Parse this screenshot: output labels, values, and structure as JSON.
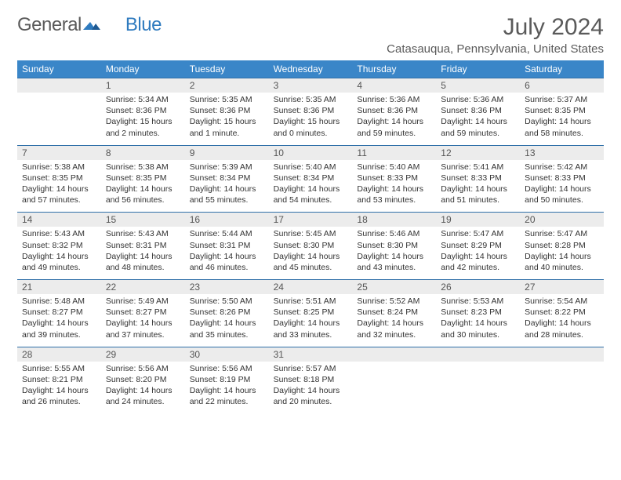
{
  "logo": {
    "part1": "General",
    "part2": "Blue"
  },
  "title": "July 2024",
  "location": "Catasauqua, Pennsylvania, United States",
  "colors": {
    "header_bg": "#3a86c8",
    "header_text": "#ffffff",
    "daynum_bg": "#ececec",
    "week_border": "#2f6fa8",
    "body_text": "#333333",
    "title_text": "#5a5a5a"
  },
  "day_names": [
    "Sunday",
    "Monday",
    "Tuesday",
    "Wednesday",
    "Thursday",
    "Friday",
    "Saturday"
  ],
  "weeks": [
    [
      {
        "n": "",
        "sunrise": "",
        "sunset": "",
        "daylight": ""
      },
      {
        "n": "1",
        "sunrise": "Sunrise: 5:34 AM",
        "sunset": "Sunset: 8:36 PM",
        "daylight": "Daylight: 15 hours and 2 minutes."
      },
      {
        "n": "2",
        "sunrise": "Sunrise: 5:35 AM",
        "sunset": "Sunset: 8:36 PM",
        "daylight": "Daylight: 15 hours and 1 minute."
      },
      {
        "n": "3",
        "sunrise": "Sunrise: 5:35 AM",
        "sunset": "Sunset: 8:36 PM",
        "daylight": "Daylight: 15 hours and 0 minutes."
      },
      {
        "n": "4",
        "sunrise": "Sunrise: 5:36 AM",
        "sunset": "Sunset: 8:36 PM",
        "daylight": "Daylight: 14 hours and 59 minutes."
      },
      {
        "n": "5",
        "sunrise": "Sunrise: 5:36 AM",
        "sunset": "Sunset: 8:36 PM",
        "daylight": "Daylight: 14 hours and 59 minutes."
      },
      {
        "n": "6",
        "sunrise": "Sunrise: 5:37 AM",
        "sunset": "Sunset: 8:35 PM",
        "daylight": "Daylight: 14 hours and 58 minutes."
      }
    ],
    [
      {
        "n": "7",
        "sunrise": "Sunrise: 5:38 AM",
        "sunset": "Sunset: 8:35 PM",
        "daylight": "Daylight: 14 hours and 57 minutes."
      },
      {
        "n": "8",
        "sunrise": "Sunrise: 5:38 AM",
        "sunset": "Sunset: 8:35 PM",
        "daylight": "Daylight: 14 hours and 56 minutes."
      },
      {
        "n": "9",
        "sunrise": "Sunrise: 5:39 AM",
        "sunset": "Sunset: 8:34 PM",
        "daylight": "Daylight: 14 hours and 55 minutes."
      },
      {
        "n": "10",
        "sunrise": "Sunrise: 5:40 AM",
        "sunset": "Sunset: 8:34 PM",
        "daylight": "Daylight: 14 hours and 54 minutes."
      },
      {
        "n": "11",
        "sunrise": "Sunrise: 5:40 AM",
        "sunset": "Sunset: 8:33 PM",
        "daylight": "Daylight: 14 hours and 53 minutes."
      },
      {
        "n": "12",
        "sunrise": "Sunrise: 5:41 AM",
        "sunset": "Sunset: 8:33 PM",
        "daylight": "Daylight: 14 hours and 51 minutes."
      },
      {
        "n": "13",
        "sunrise": "Sunrise: 5:42 AM",
        "sunset": "Sunset: 8:33 PM",
        "daylight": "Daylight: 14 hours and 50 minutes."
      }
    ],
    [
      {
        "n": "14",
        "sunrise": "Sunrise: 5:43 AM",
        "sunset": "Sunset: 8:32 PM",
        "daylight": "Daylight: 14 hours and 49 minutes."
      },
      {
        "n": "15",
        "sunrise": "Sunrise: 5:43 AM",
        "sunset": "Sunset: 8:31 PM",
        "daylight": "Daylight: 14 hours and 48 minutes."
      },
      {
        "n": "16",
        "sunrise": "Sunrise: 5:44 AM",
        "sunset": "Sunset: 8:31 PM",
        "daylight": "Daylight: 14 hours and 46 minutes."
      },
      {
        "n": "17",
        "sunrise": "Sunrise: 5:45 AM",
        "sunset": "Sunset: 8:30 PM",
        "daylight": "Daylight: 14 hours and 45 minutes."
      },
      {
        "n": "18",
        "sunrise": "Sunrise: 5:46 AM",
        "sunset": "Sunset: 8:30 PM",
        "daylight": "Daylight: 14 hours and 43 minutes."
      },
      {
        "n": "19",
        "sunrise": "Sunrise: 5:47 AM",
        "sunset": "Sunset: 8:29 PM",
        "daylight": "Daylight: 14 hours and 42 minutes."
      },
      {
        "n": "20",
        "sunrise": "Sunrise: 5:47 AM",
        "sunset": "Sunset: 8:28 PM",
        "daylight": "Daylight: 14 hours and 40 minutes."
      }
    ],
    [
      {
        "n": "21",
        "sunrise": "Sunrise: 5:48 AM",
        "sunset": "Sunset: 8:27 PM",
        "daylight": "Daylight: 14 hours and 39 minutes."
      },
      {
        "n": "22",
        "sunrise": "Sunrise: 5:49 AM",
        "sunset": "Sunset: 8:27 PM",
        "daylight": "Daylight: 14 hours and 37 minutes."
      },
      {
        "n": "23",
        "sunrise": "Sunrise: 5:50 AM",
        "sunset": "Sunset: 8:26 PM",
        "daylight": "Daylight: 14 hours and 35 minutes."
      },
      {
        "n": "24",
        "sunrise": "Sunrise: 5:51 AM",
        "sunset": "Sunset: 8:25 PM",
        "daylight": "Daylight: 14 hours and 33 minutes."
      },
      {
        "n": "25",
        "sunrise": "Sunrise: 5:52 AM",
        "sunset": "Sunset: 8:24 PM",
        "daylight": "Daylight: 14 hours and 32 minutes."
      },
      {
        "n": "26",
        "sunrise": "Sunrise: 5:53 AM",
        "sunset": "Sunset: 8:23 PM",
        "daylight": "Daylight: 14 hours and 30 minutes."
      },
      {
        "n": "27",
        "sunrise": "Sunrise: 5:54 AM",
        "sunset": "Sunset: 8:22 PM",
        "daylight": "Daylight: 14 hours and 28 minutes."
      }
    ],
    [
      {
        "n": "28",
        "sunrise": "Sunrise: 5:55 AM",
        "sunset": "Sunset: 8:21 PM",
        "daylight": "Daylight: 14 hours and 26 minutes."
      },
      {
        "n": "29",
        "sunrise": "Sunrise: 5:56 AM",
        "sunset": "Sunset: 8:20 PM",
        "daylight": "Daylight: 14 hours and 24 minutes."
      },
      {
        "n": "30",
        "sunrise": "Sunrise: 5:56 AM",
        "sunset": "Sunset: 8:19 PM",
        "daylight": "Daylight: 14 hours and 22 minutes."
      },
      {
        "n": "31",
        "sunrise": "Sunrise: 5:57 AM",
        "sunset": "Sunset: 8:18 PM",
        "daylight": "Daylight: 14 hours and 20 minutes."
      },
      {
        "n": "",
        "sunrise": "",
        "sunset": "",
        "daylight": ""
      },
      {
        "n": "",
        "sunrise": "",
        "sunset": "",
        "daylight": ""
      },
      {
        "n": "",
        "sunrise": "",
        "sunset": "",
        "daylight": ""
      }
    ]
  ]
}
